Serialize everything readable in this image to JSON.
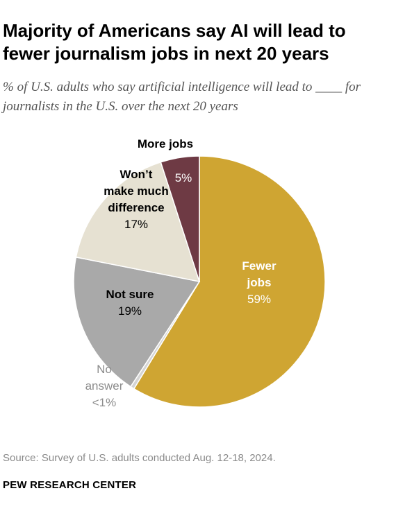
{
  "title": "Majority of Americans say AI will lead to fewer journalism jobs in next 20 years",
  "subtitle": "% of U.S. adults who say artificial intelligence will lead to ____ for journalists in the U.S. over the next 20 years",
  "chart_data": {
    "type": "pie",
    "start": "12 o'clock",
    "direction": "clockwise",
    "slices": [
      {
        "label": "Fewer jobs",
        "value": 59,
        "value_label": "59%",
        "color": "#cfa532",
        "label_color": "#ffffff"
      },
      {
        "label": "No answer",
        "value": 0.5,
        "value_label": "<1%",
        "color": "#d4d4d4",
        "label_color": "#8c8c8c"
      },
      {
        "label": "Not sure",
        "value": 19,
        "value_label": "19%",
        "color": "#a9a9a9",
        "label_color": "#000000"
      },
      {
        "label": "Won’t make much difference",
        "value": 17,
        "value_label": "17%",
        "color": "#e6e1d2",
        "label_color": "#000000"
      },
      {
        "label": "More jobs",
        "value": 5,
        "value_label": "5%",
        "color": "#6e3a44",
        "label_color": "#ffffff"
      }
    ]
  },
  "source": "Source: Survey of U.S. adults conducted Aug. 12-18, 2024.",
  "organization": "PEW RESEARCH CENTER"
}
